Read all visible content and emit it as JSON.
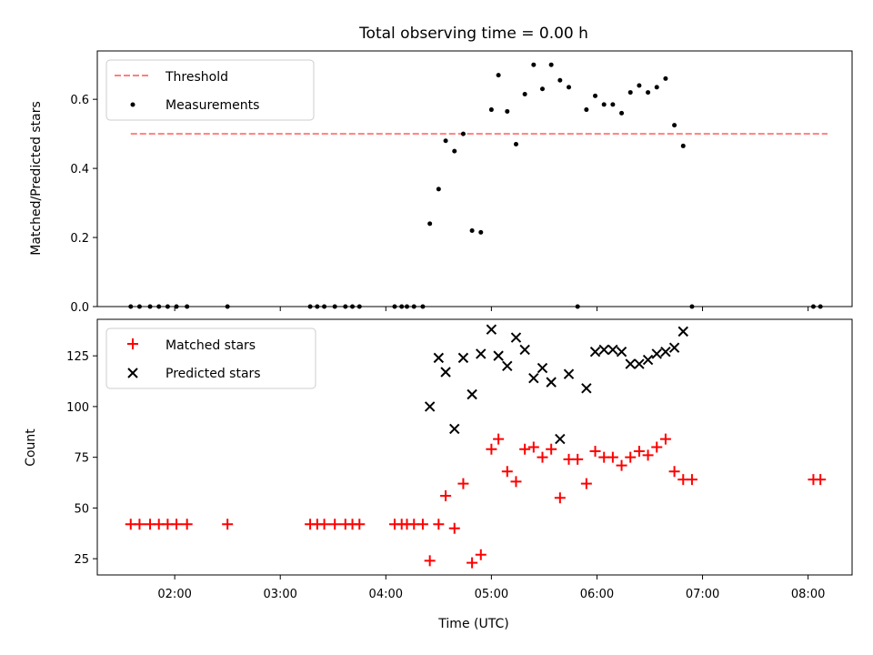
{
  "chart_data": [
    {
      "type": "scatter",
      "title": "Total observing time = 0.00 h",
      "xlabel": "",
      "ylabel": "Matched/Predicted stars",
      "xlim": [
        "01:16",
        "08:25"
      ],
      "ylim": [
        0,
        0.74
      ],
      "yticks": [
        "0.0",
        "0.2",
        "0.4",
        "0.6"
      ],
      "legend": "upper-left",
      "threshold": {
        "name": "Threshold",
        "value": 0.5,
        "x_range": [
          "01:35",
          "08:11"
        ],
        "color": "#ff7f7f",
        "style": "dashed"
      },
      "series": [
        {
          "name": "Measurements",
          "marker": "dot",
          "color": "#000000",
          "points": [
            [
              "01:35",
              0
            ],
            [
              "01:40",
              0
            ],
            [
              "01:46",
              0
            ],
            [
              "01:51",
              0
            ],
            [
              "01:56",
              0
            ],
            [
              "02:01",
              0
            ],
            [
              "02:07",
              0
            ],
            [
              "02:30",
              0
            ],
            [
              "03:17",
              0
            ],
            [
              "03:21",
              0
            ],
            [
              "03:25",
              0
            ],
            [
              "03:31",
              0
            ],
            [
              "03:37",
              0
            ],
            [
              "03:41",
              0
            ],
            [
              "03:45",
              0
            ],
            [
              "04:05",
              0
            ],
            [
              "04:09",
              0
            ],
            [
              "04:12",
              0
            ],
            [
              "04:16",
              0
            ],
            [
              "04:21",
              0
            ],
            [
              "04:25",
              0.24
            ],
            [
              "04:30",
              0.34
            ],
            [
              "04:34",
              0.48
            ],
            [
              "04:39",
              0.45
            ],
            [
              "04:44",
              0.5
            ],
            [
              "04:49",
              0.22
            ],
            [
              "04:54",
              0.215
            ],
            [
              "05:00",
              0.57
            ],
            [
              "05:04",
              0.67
            ],
            [
              "05:09",
              0.565
            ],
            [
              "05:14",
              0.47
            ],
            [
              "05:19",
              0.615
            ],
            [
              "05:24",
              0.7
            ],
            [
              "05:29",
              0.63
            ],
            [
              "05:34",
              0.7
            ],
            [
              "05:39",
              0.655
            ],
            [
              "05:44",
              0.635
            ],
            [
              "05:49",
              0
            ],
            [
              "05:54",
              0.57
            ],
            [
              "05:59",
              0.61
            ],
            [
              "06:04",
              0.585
            ],
            [
              "06:09",
              0.585
            ],
            [
              "06:14",
              0.56
            ],
            [
              "06:19",
              0.62
            ],
            [
              "06:24",
              0.64
            ],
            [
              "06:29",
              0.62
            ],
            [
              "06:34",
              0.635
            ],
            [
              "06:39",
              0.66
            ],
            [
              "06:44",
              0.525
            ],
            [
              "06:49",
              0.465
            ],
            [
              "06:54",
              0
            ],
            [
              "08:03",
              0
            ],
            [
              "08:07",
              0
            ]
          ]
        }
      ]
    },
    {
      "type": "scatter",
      "title": "",
      "xlabel": "Time (UTC)",
      "ylabel": "Count",
      "xlim": [
        "01:16",
        "08:25"
      ],
      "ylim": [
        17,
        143
      ],
      "xticks": [
        "02:00",
        "03:00",
        "04:00",
        "05:00",
        "06:00",
        "07:00",
        "08:00"
      ],
      "yticks": [
        "25",
        "50",
        "75",
        "100",
        "125"
      ],
      "legend": "upper-left",
      "series": [
        {
          "name": "Matched stars",
          "marker": "plus",
          "color": "#ff0000",
          "points": [
            [
              "01:35",
              42
            ],
            [
              "01:40",
              42
            ],
            [
              "01:46",
              42
            ],
            [
              "01:51",
              42
            ],
            [
              "01:56",
              42
            ],
            [
              "02:01",
              42
            ],
            [
              "02:07",
              42
            ],
            [
              "02:30",
              42
            ],
            [
              "03:17",
              42
            ],
            [
              "03:21",
              42
            ],
            [
              "03:25",
              42
            ],
            [
              "03:31",
              42
            ],
            [
              "03:37",
              42
            ],
            [
              "03:41",
              42
            ],
            [
              "03:45",
              42
            ],
            [
              "04:05",
              42
            ],
            [
              "04:09",
              42
            ],
            [
              "04:12",
              42
            ],
            [
              "04:16",
              42
            ],
            [
              "04:21",
              42
            ],
            [
              "04:25",
              24
            ],
            [
              "04:30",
              42
            ],
            [
              "04:34",
              56
            ],
            [
              "04:39",
              40
            ],
            [
              "04:44",
              62
            ],
            [
              "04:49",
              23
            ],
            [
              "04:54",
              27
            ],
            [
              "05:00",
              79
            ],
            [
              "05:04",
              84
            ],
            [
              "05:09",
              68
            ],
            [
              "05:14",
              63
            ],
            [
              "05:19",
              79
            ],
            [
              "05:24",
              80
            ],
            [
              "05:29",
              75
            ],
            [
              "05:34",
              79
            ],
            [
              "05:39",
              55
            ],
            [
              "05:44",
              74
            ],
            [
              "05:49",
              74
            ],
            [
              "05:54",
              62
            ],
            [
              "05:59",
              78
            ],
            [
              "06:04",
              75
            ],
            [
              "06:09",
              75
            ],
            [
              "06:14",
              71
            ],
            [
              "06:19",
              75
            ],
            [
              "06:24",
              78
            ],
            [
              "06:29",
              76
            ],
            [
              "06:34",
              80
            ],
            [
              "06:39",
              84
            ],
            [
              "06:44",
              68
            ],
            [
              "06:49",
              64
            ],
            [
              "06:54",
              64
            ],
            [
              "08:03",
              64
            ],
            [
              "08:07",
              64
            ]
          ]
        },
        {
          "name": "Predicted stars",
          "marker": "x",
          "color": "#000000",
          "points": [
            [
              "04:25",
              100
            ],
            [
              "04:30",
              124
            ],
            [
              "04:34",
              117
            ],
            [
              "04:39",
              89
            ],
            [
              "04:44",
              124
            ],
            [
              "04:49",
              106
            ],
            [
              "04:54",
              126
            ],
            [
              "05:00",
              138
            ],
            [
              "05:04",
              125
            ],
            [
              "05:09",
              120
            ],
            [
              "05:14",
              134
            ],
            [
              "05:19",
              128
            ],
            [
              "05:24",
              114
            ],
            [
              "05:29",
              119
            ],
            [
              "05:34",
              112
            ],
            [
              "05:39",
              84
            ],
            [
              "05:44",
              116
            ],
            [
              "05:54",
              109
            ],
            [
              "05:59",
              127
            ],
            [
              "06:04",
              128
            ],
            [
              "06:09",
              128
            ],
            [
              "06:14",
              127
            ],
            [
              "06:19",
              121
            ],
            [
              "06:24",
              121
            ],
            [
              "06:29",
              123
            ],
            [
              "06:34",
              126
            ],
            [
              "06:39",
              127
            ],
            [
              "06:44",
              129
            ],
            [
              "06:49",
              137
            ]
          ]
        }
      ]
    }
  ]
}
